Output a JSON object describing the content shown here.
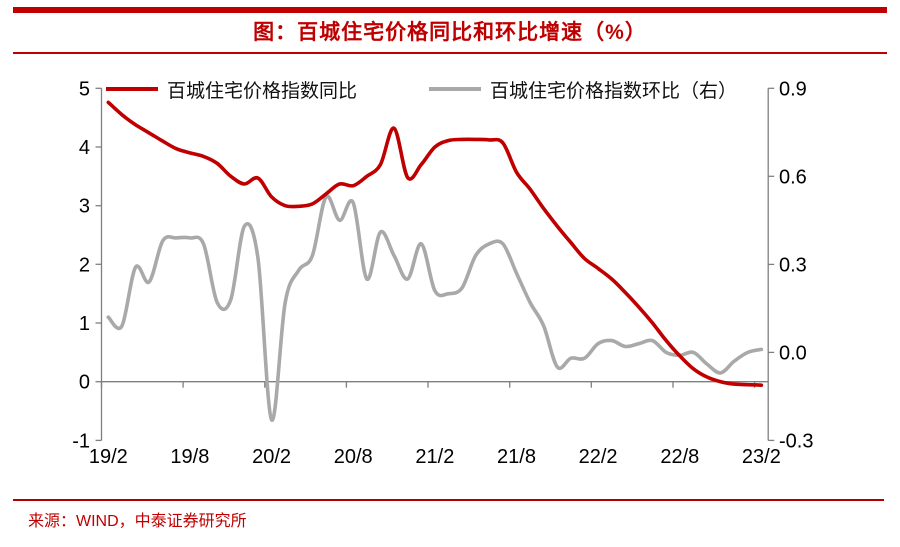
{
  "page": {
    "title": "图：百城住宅价格同比和环比增速（%）",
    "source": "来源：WIND，中泰证券研究所"
  },
  "colors": {
    "accent_red": "#c00000",
    "line_red": "#c00000",
    "line_gray": "#a9a9a9",
    "axis_gray": "#7f7f7f",
    "label_black": "#000000"
  },
  "chart_data": {
    "type": "line",
    "title": "图：百城住宅价格同比和环比增速（%）",
    "grid": false,
    "legend_position": "top",
    "axis_color": "#7f7f7f",
    "x": [
      "19/2",
      "19/3",
      "19/4",
      "19/5",
      "19/6",
      "19/7",
      "19/8",
      "19/9",
      "19/10",
      "19/11",
      "19/12",
      "20/1",
      "20/2",
      "20/3",
      "20/4",
      "20/5",
      "20/6",
      "20/7",
      "20/8",
      "20/9",
      "20/10",
      "20/11",
      "20/12",
      "21/1",
      "21/2",
      "21/3",
      "21/4",
      "21/5",
      "21/6",
      "21/7",
      "21/8",
      "21/9",
      "21/10",
      "21/11",
      "21/12",
      "22/1",
      "22/2",
      "22/3",
      "22/4",
      "22/5",
      "22/6",
      "22/7",
      "22/8",
      "22/9",
      "22/10",
      "22/11",
      "22/12",
      "23/1",
      "23/2"
    ],
    "x_axis": {
      "labels": [
        "19/2",
        "19/8",
        "20/2",
        "20/8",
        "21/2",
        "21/8",
        "22/2",
        "22/8",
        "23/2"
      ],
      "label_every_n_months": 6
    },
    "left_axis": {
      "tick_labels": [
        "5",
        "4",
        "3",
        "2",
        "1",
        "0",
        "-1"
      ],
      "range": [
        -1,
        5
      ]
    },
    "right_axis": {
      "tick_labels": [
        "0.9",
        "0.6",
        "0.3",
        "0.0",
        "-0.3"
      ],
      "range": [
        -0.3,
        0.9
      ]
    },
    "series": [
      {
        "name": "百城住宅价格指数同比",
        "axis": "left",
        "color": "#c00000",
        "values": [
          4.76,
          4.55,
          4.38,
          4.24,
          4.1,
          3.97,
          3.9,
          3.84,
          3.72,
          3.5,
          3.37,
          3.47,
          3.15,
          3.0,
          2.99,
          3.03,
          3.2,
          3.37,
          3.34,
          3.5,
          3.7,
          4.32,
          3.48,
          3.7,
          4.0,
          4.11,
          4.13,
          4.13,
          4.12,
          4.07,
          3.57,
          3.28,
          2.95,
          2.65,
          2.37,
          2.1,
          1.93,
          1.75,
          1.52,
          1.27,
          1.0,
          0.7,
          0.44,
          0.22,
          0.08,
          0.0,
          -0.04,
          -0.05,
          -0.06
        ]
      },
      {
        "name": "百城住宅价格指数环比（右）",
        "axis": "right",
        "color": "#a9a9a9",
        "values": [
          0.12,
          0.09,
          0.29,
          0.24,
          0.38,
          0.39,
          0.39,
          0.37,
          0.17,
          0.18,
          0.43,
          0.32,
          -0.23,
          0.17,
          0.28,
          0.33,
          0.53,
          0.45,
          0.51,
          0.25,
          0.41,
          0.33,
          0.25,
          0.37,
          0.21,
          0.2,
          0.22,
          0.33,
          0.37,
          0.37,
          0.27,
          0.17,
          0.09,
          -0.05,
          -0.02,
          -0.02,
          0.03,
          0.04,
          0.02,
          0.03,
          0.04,
          0.0,
          -0.01,
          0.0,
          -0.04,
          -0.07,
          -0.03,
          0.0,
          0.01
        ]
      }
    ]
  }
}
